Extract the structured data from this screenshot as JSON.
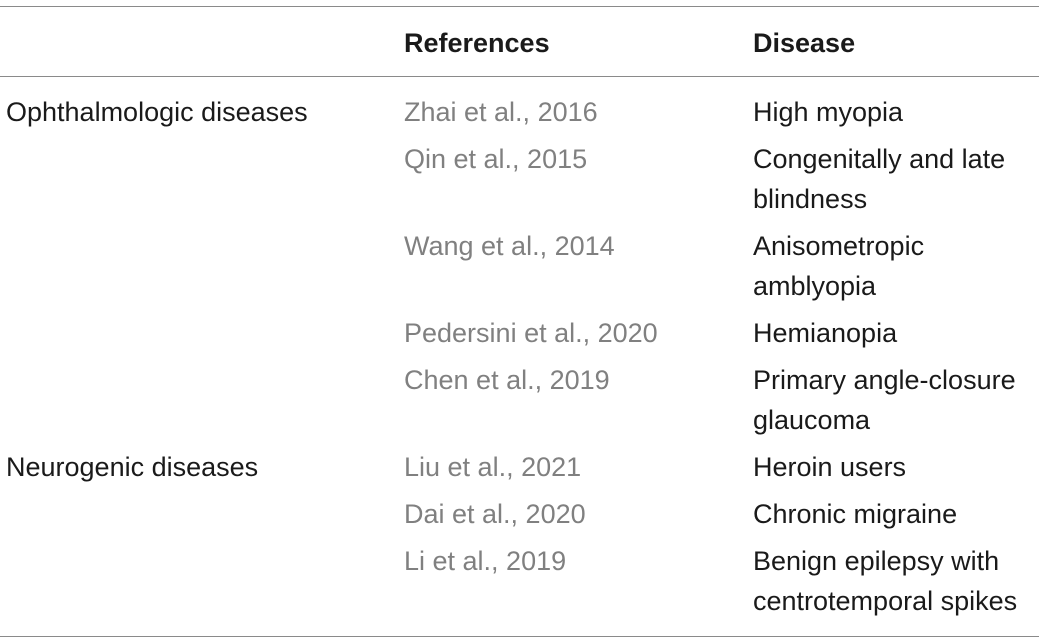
{
  "table": {
    "headers": {
      "category": "",
      "references": "References",
      "disease": "Disease"
    },
    "groups": [
      {
        "category": "Ophthalmologic diseases",
        "rows": [
          {
            "reference": "Zhai et al., 2016",
            "disease_lines": [
              "High myopia"
            ]
          },
          {
            "reference": "Qin et al., 2015",
            "disease_lines": [
              "Congenitally and late",
              "blindness"
            ]
          },
          {
            "reference": "Wang et al., 2014",
            "disease_lines": [
              "Anisometropic",
              "amblyopia"
            ]
          },
          {
            "reference": "Pedersini et al., 2020",
            "disease_lines": [
              "Hemianopia"
            ]
          },
          {
            "reference": "Chen et al., 2019",
            "disease_lines": [
              "Primary angle-closure",
              "glaucoma"
            ]
          }
        ]
      },
      {
        "category": "Neurogenic diseases",
        "rows": [
          {
            "reference": "Liu et al., 2021",
            "disease_lines": [
              "Heroin users"
            ]
          },
          {
            "reference": "Dai et al., 2020",
            "disease_lines": [
              "Chronic migraine"
            ]
          },
          {
            "reference": "Li et al., 2019",
            "disease_lines": [
              "Benign epilepsy with",
              "centrotemporal spikes"
            ]
          }
        ]
      }
    ]
  }
}
